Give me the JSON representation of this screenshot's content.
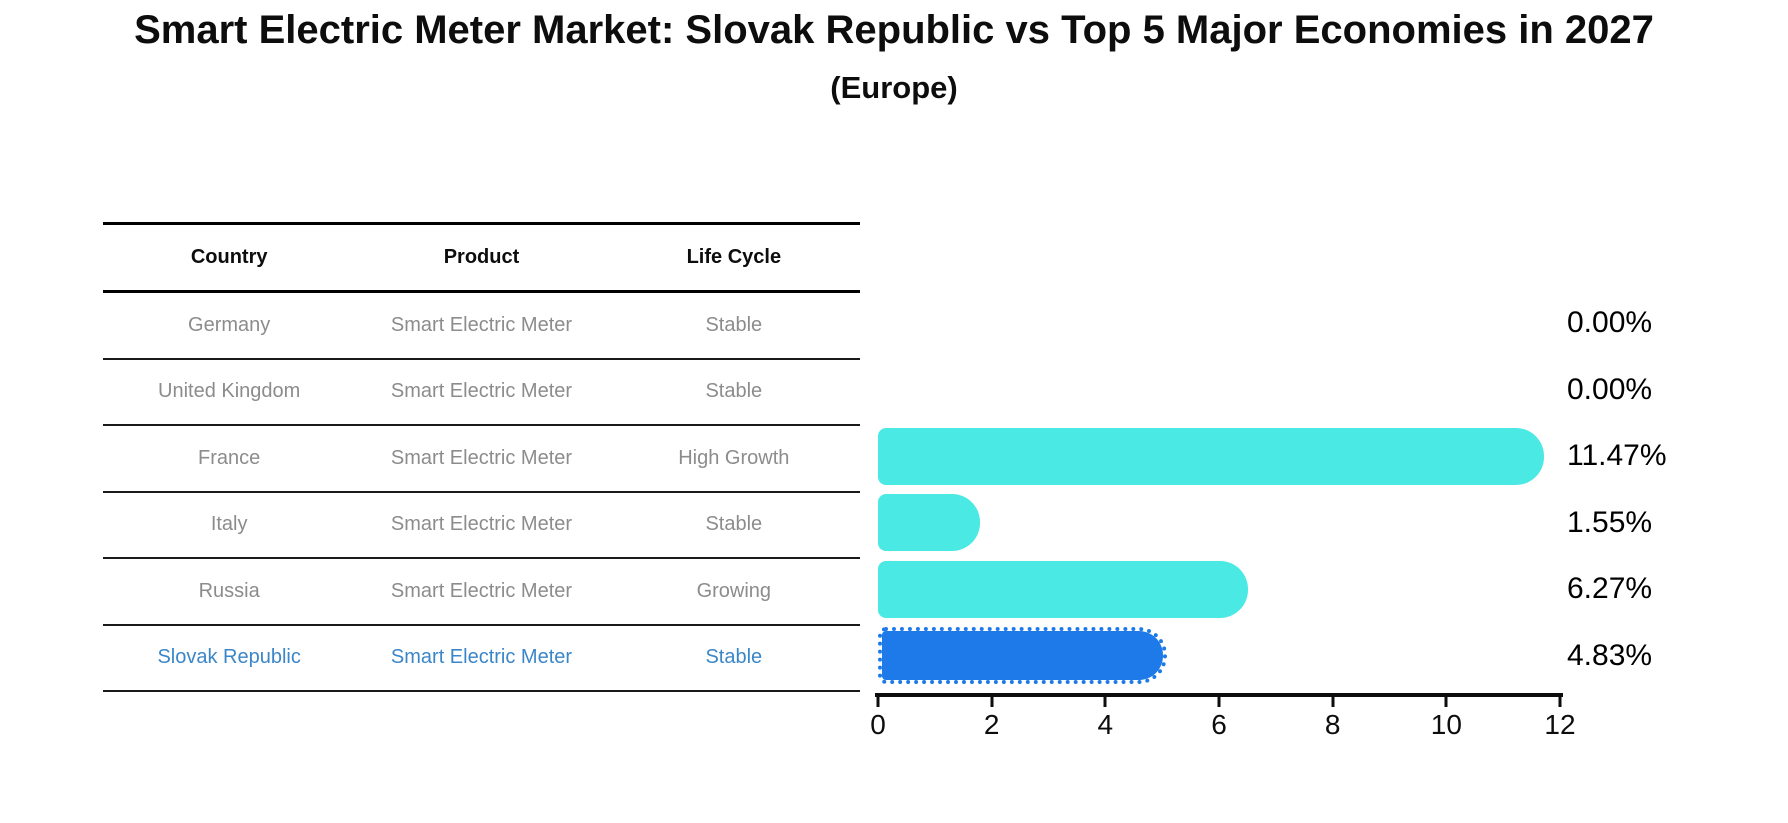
{
  "title": "Smart Electric Meter Market: Slovak Republic vs Top 5 Major Economies in 2027",
  "subtitle": "(Europe)",
  "table": {
    "headers": [
      "Country",
      "Product",
      "Life Cycle"
    ],
    "rows": [
      {
        "country": "Germany",
        "product": "Smart Electric Meter",
        "life_cycle": "Stable"
      },
      {
        "country": "United Kingdom",
        "product": "Smart Electric Meter",
        "life_cycle": "Stable"
      },
      {
        "country": "France",
        "product": "Smart Electric Meter",
        "life_cycle": "High Growth"
      },
      {
        "country": "Italy",
        "product": "Smart Electric Meter",
        "life_cycle": "Stable"
      },
      {
        "country": "Russia",
        "product": "Smart Electric Meter",
        "life_cycle": "Growing"
      },
      {
        "country": "Slovak Republic",
        "product": "Smart Electric Meter",
        "life_cycle": "Stable"
      }
    ]
  },
  "chart_data": {
    "type": "bar",
    "orientation": "horizontal",
    "categories": [
      "Germany",
      "United Kingdom",
      "France",
      "Italy",
      "Russia",
      "Slovak Republic"
    ],
    "values": [
      0.0,
      0.0,
      11.47,
      1.55,
      6.27,
      4.83
    ],
    "labels": [
      "0.00%",
      "0.00%",
      "11.47%",
      "1.55%",
      "6.27%",
      "4.83%"
    ],
    "x_ticks": [
      0,
      2,
      4,
      6,
      8,
      10,
      12
    ],
    "xlim": [
      0,
      12
    ],
    "grid": false,
    "legend": false,
    "highlight_category": "Slovak Republic",
    "colors": {
      "bar": "#4ae9e3",
      "highlight_bar": "#1e7ae8",
      "row_text": "#8c8c8c",
      "highlight_text": "#3b86c8",
      "axis": "#0d0d0d"
    }
  }
}
